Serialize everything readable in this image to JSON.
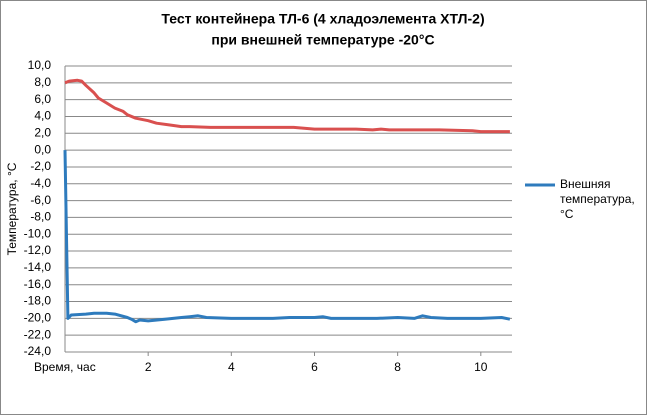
{
  "chart_data": {
    "type": "line",
    "title": "Тест контейнера ТЛ-6 (4 хладоэлемента ХТЛ-2)",
    "subtitle": "при внешней температуре -20°С",
    "x_label": "Время, час",
    "y_label": "Температура, °С",
    "xlim": [
      0,
      10.75
    ],
    "xticks": [
      2,
      4,
      6,
      8,
      10
    ],
    "ylim": [
      -24,
      10
    ],
    "yticks": [
      {
        "value": -24,
        "label": "-24,0"
      },
      {
        "value": -22,
        "label": "-22,0"
      },
      {
        "value": -20,
        "label": "-20,0"
      },
      {
        "value": -18,
        "label": "-18,0"
      },
      {
        "value": -16,
        "label": "-16,0"
      },
      {
        "value": -14,
        "label": "-14,0"
      },
      {
        "value": -12,
        "label": "-12,0"
      },
      {
        "value": -10,
        "label": "-10,0"
      },
      {
        "value": -8,
        "label": "-8,0"
      },
      {
        "value": -6,
        "label": "-6,0"
      },
      {
        "value": -4,
        "label": "-4,0"
      },
      {
        "value": -2,
        "label": "-2,0"
      },
      {
        "value": 0,
        "label": "0,0"
      },
      {
        "value": 2,
        "label": "2,0"
      },
      {
        "value": 4,
        "label": "4,0"
      },
      {
        "value": 6,
        "label": "6,0"
      },
      {
        "value": 8,
        "label": "8,0"
      },
      {
        "value": 10,
        "label": "10,0"
      }
    ],
    "grid": true,
    "legend": "right",
    "series": [
      {
        "color": "#d9504f",
        "x": [
          0,
          0.1,
          0.3,
          0.4,
          0.5,
          0.7,
          0.8,
          1.0,
          1.2,
          1.4,
          1.5,
          1.7,
          2.0,
          2.2,
          2.5,
          2.8,
          3.0,
          3.5,
          4,
          5,
          5.5,
          6,
          7,
          7.4,
          7.6,
          7.8,
          8,
          9,
          9.8,
          10,
          10.7
        ],
        "values": [
          8.0,
          8.2,
          8.3,
          8.2,
          7.7,
          6.8,
          6.2,
          5.6,
          5.0,
          4.6,
          4.2,
          3.8,
          3.5,
          3.2,
          3.0,
          2.8,
          2.8,
          2.7,
          2.7,
          2.7,
          2.7,
          2.5,
          2.5,
          2.4,
          2.5,
          2.4,
          2.4,
          2.4,
          2.3,
          2.2,
          2.2
        ]
      },
      {
        "name": "Внешняя температура, °С",
        "color": "#2e7bbd",
        "x": [
          0,
          0.07,
          0.15,
          0.5,
          0.7,
          1.0,
          1.2,
          1.5,
          1.6,
          1.7,
          1.8,
          2.0,
          2.4,
          2.8,
          3.0,
          3.2,
          3.4,
          4,
          4.5,
          5,
          5.4,
          6,
          6.2,
          6.4,
          7,
          7.5,
          8,
          8.4,
          8.6,
          8.8,
          9.2,
          9.6,
          10,
          10.5,
          10.7
        ],
        "values": [
          0,
          -20.0,
          -19.6,
          -19.5,
          -19.4,
          -19.4,
          -19.5,
          -19.9,
          -20.1,
          -20.4,
          -20.2,
          -20.3,
          -20.1,
          -19.9,
          -19.8,
          -19.7,
          -19.9,
          -20.0,
          -20.0,
          -20.0,
          -19.9,
          -19.9,
          -19.8,
          -20.0,
          -20.0,
          -20.0,
          -19.9,
          -20.0,
          -19.7,
          -19.9,
          -20.0,
          -20.0,
          -20.0,
          -19.9,
          -20.1
        ]
      }
    ]
  }
}
